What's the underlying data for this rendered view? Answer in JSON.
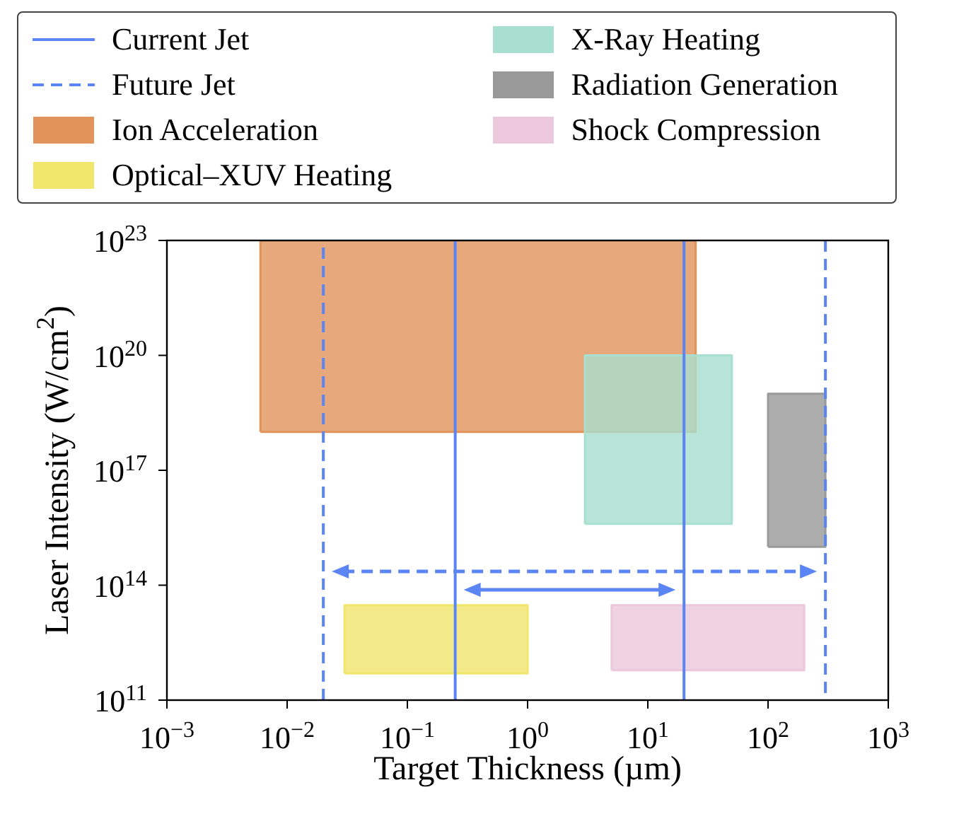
{
  "chart_data": {
    "type": "area",
    "xlabel": "Target Thickness (µm)",
    "ylabel": "Laser Intensity (W/cm$^{2}$)",
    "log": "xy",
    "legend": "top",
    "xlim": [
      0.001,
      1000
    ],
    "ylim": [
      100000000000.0,
      1e+23
    ],
    "xticks": [
      {
        "value": 0.001,
        "label": "10$^{−3}$"
      },
      {
        "value": 0.01,
        "label": "10$^{−2}$"
      },
      {
        "value": 0.1,
        "label": "10$^{−1}$"
      },
      {
        "value": 1,
        "label": "10$^{0}$"
      },
      {
        "value": 10,
        "label": "10$^{1}$"
      },
      {
        "value": 100,
        "label": "10$^{2}$"
      },
      {
        "value": 1000,
        "label": "10$^{3}$"
      }
    ],
    "yticks": [
      {
        "value": 100000000000.0,
        "label": "10$^{11}$"
      },
      {
        "value": 100000000000000.0,
        "label": "10$^{14}$"
      },
      {
        "value": 1e+17,
        "label": "10$^{17}$"
      },
      {
        "value": 1e+20,
        "label": "10$^{20}$"
      },
      {
        "value": 1e+23,
        "label": "10$^{23}$"
      }
    ],
    "series": [
      {
        "name": "Current Jet",
        "type": "line",
        "line_style": "solid",
        "color": "#5b84f5",
        "x": [
          0.25,
          0.25,
          null,
          20,
          20
        ],
        "values": [
          100000000000.0,
          1e+23,
          null,
          1e+23,
          100000000000.0
        ]
      },
      {
        "name": "Future Jet",
        "type": "line",
        "line_style": "dashed",
        "color": "#5b84f5",
        "x": [
          0.02,
          0.02,
          null,
          300,
          300
        ],
        "values": [
          100000000000.0,
          1e+23,
          null,
          1e+23,
          100000000000.0
        ]
      },
      {
        "name": "Ion Acceleration",
        "color": "#e1935a",
        "x": [
          0.006,
          0.006,
          25,
          25,
          0.006
        ],
        "values": [
          1e+18,
          1e+23,
          1e+23,
          1e+18,
          1e+18
        ]
      },
      {
        "name": "Optical–XUV Heating",
        "color": "#f0e66c",
        "x": [
          0.03,
          0.03,
          1,
          1,
          0.03
        ],
        "values": [
          500000000000.0,
          30000000000000.0,
          30000000000000.0,
          500000000000.0,
          500000000000.0
        ]
      },
      {
        "name": "X-Ray Heating",
        "color": "#a8dfcf",
        "x": [
          3,
          3,
          50,
          50,
          3
        ],
        "values": [
          4000000000000000.0,
          1e+20,
          1e+20,
          4000000000000000.0,
          4000000000000000.0
        ]
      },
      {
        "name": "Radiation Generation",
        "color": "#999999",
        "x": [
          100,
          100,
          300,
          300,
          100
        ],
        "values": [
          1000000000000000.0,
          1e+19,
          1e+19,
          1000000000000000.0,
          1000000000000000.0
        ]
      },
      {
        "name": "Shock Compression",
        "color": "#ebc8dc",
        "x": [
          5,
          5,
          200,
          200,
          5
        ],
        "values": [
          600000000000.0,
          30000000000000.0,
          30000000000000.0,
          600000000000.0,
          600000000000.0
        ]
      }
    ]
  }
}
